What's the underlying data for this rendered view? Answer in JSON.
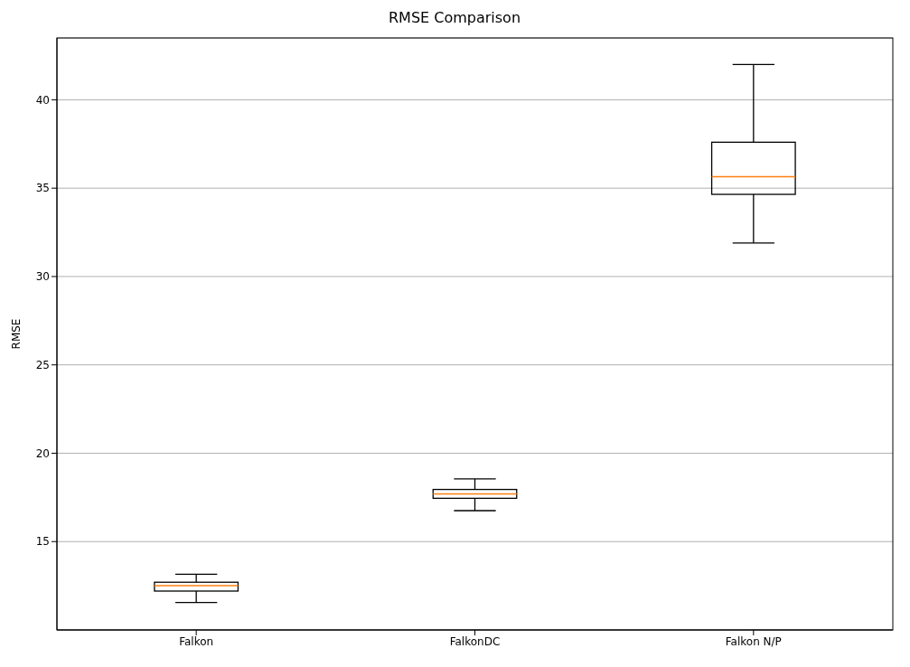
{
  "chart_data": {
    "type": "box",
    "title": "RMSE Comparison",
    "ylabel": "RMSE",
    "categories": [
      "Falkon",
      "FalkonDC",
      "Falkon N/P"
    ],
    "boxes": [
      {
        "low": 11.55,
        "q1": 12.2,
        "median": 12.5,
        "q3": 12.7,
        "high": 13.15
      },
      {
        "low": 16.75,
        "q1": 17.45,
        "median": 17.7,
        "q3": 17.95,
        "high": 18.55
      },
      {
        "low": 31.9,
        "q1": 34.65,
        "median": 35.65,
        "q3": 37.6,
        "high": 42.0
      }
    ],
    "color": "#000000",
    "ylim": [
      10,
      43.5
    ],
    "yticks": [
      15,
      20,
      25,
      30,
      35,
      40
    ],
    "grid": "y"
  }
}
